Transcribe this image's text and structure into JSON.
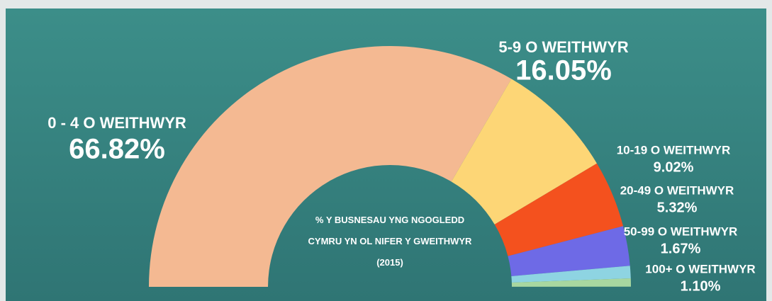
{
  "chart_data": {
    "type": "semi-donut",
    "title": "% Y BUSNESAU YNG NGOGLEDD CYMRU YN OL NIFER Y GWEITHWYR (2015)",
    "categories": [
      "0 - 4 O WEITHWYR",
      "5-9 O WEITHWYR",
      "10-19 O WEITHWYR",
      "20-49 O WEITHWYR",
      "50-99 O WEITHWYR",
      "100+ O WEITHWYR"
    ],
    "values": [
      66.82,
      16.05,
      9.02,
      5.32,
      1.67,
      1.1
    ],
    "value_labels": [
      "66.82%",
      "16.05%",
      "9.02%",
      "5.32%",
      "1.67%",
      "1.10%"
    ],
    "colors": [
      "#f4b992",
      "#fdd676",
      "#f4511e",
      "#6e6ae6",
      "#8ed4e2",
      "#a8d7a0"
    ]
  }
}
